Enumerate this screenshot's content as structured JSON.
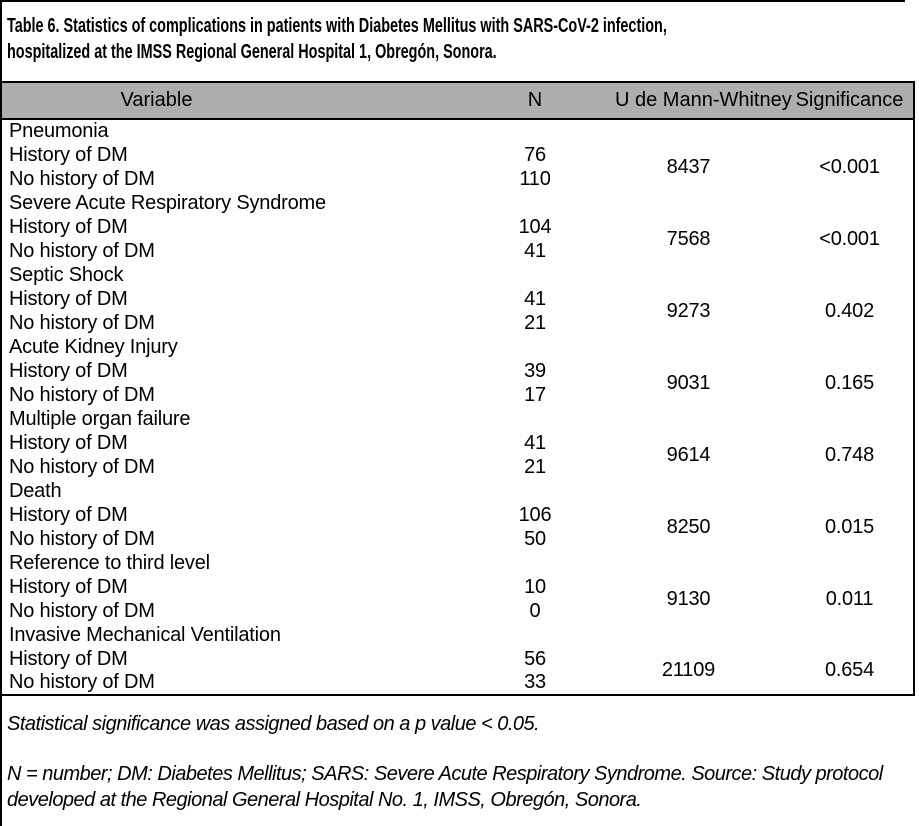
{
  "title": {
    "line1": "Table 6. Statistics of complications in patients with Diabetes Mellitus with SARS-CoV-2 infection,",
    "line2": "hospitalized at the IMSS Regional General Hospital 1, Obregón, Sonora."
  },
  "table": {
    "columns": [
      "Variable",
      "N",
      "U de Mann-Whitney",
      "Significance"
    ],
    "sections": [
      {
        "name": "Pneumonia",
        "rows": [
          {
            "label": "History of DM",
            "n": "76"
          },
          {
            "label": "No history of DM",
            "n": "110"
          }
        ],
        "u": "8437",
        "significance": "<0.001"
      },
      {
        "name": "Severe Acute Respiratory Syndrome",
        "rows": [
          {
            "label": "History of DM",
            "n": "104"
          },
          {
            "label": "No history of DM",
            "n": "41"
          }
        ],
        "u": "7568",
        "significance": "<0.001"
      },
      {
        "name": "Septic Shock",
        "rows": [
          {
            "label": "History of DM",
            "n": "41"
          },
          {
            "label": "No history of DM",
            "n": "21"
          }
        ],
        "u": "9273",
        "significance": "0.402"
      },
      {
        "name": "Acute Kidney Injury",
        "rows": [
          {
            "label": "History of DM",
            "n": "39"
          },
          {
            "label": "No history of DM",
            "n": "17"
          }
        ],
        "u": "9031",
        "significance": "0.165"
      },
      {
        "name": "Multiple organ failure",
        "rows": [
          {
            "label": "History of DM",
            "n": "41"
          },
          {
            "label": "No history of DM",
            "n": "21"
          }
        ],
        "u": "9614",
        "significance": "0.748"
      },
      {
        "name": "Death",
        "rows": [
          {
            "label": "History of DM",
            "n": "106"
          },
          {
            "label": "No history of DM",
            "n": "50"
          }
        ],
        "u": "8250",
        "significance": "0.015"
      },
      {
        "name": "Reference to third level",
        "rows": [
          {
            "label": "History of DM",
            "n": "10"
          },
          {
            "label": "No history of DM",
            "n": "0"
          }
        ],
        "u": "9130",
        "significance": "0.011"
      },
      {
        "name": "Invasive Mechanical Ventilation",
        "rows": [
          {
            "label": "History of DM",
            "n": "56"
          },
          {
            "label": "No history of DM",
            "n": "33"
          }
        ],
        "u": "21109",
        "significance": "0.654"
      }
    ]
  },
  "notes": {
    "significance_note": "Statistical significance was assigned based on a p value < 0.05.",
    "abbreviations_note": "N = number; DM: Diabetes Mellitus; SARS: Severe Acute Respiratory Syndrome. Source: Study protocol developed at the Regional General Hospital No. 1, IMSS, Obregón, Sonora."
  },
  "colors": {
    "header_background": "#AEAEAE",
    "border": "#000000",
    "text": "#000000",
    "page_background": "#FFFFFF"
  }
}
